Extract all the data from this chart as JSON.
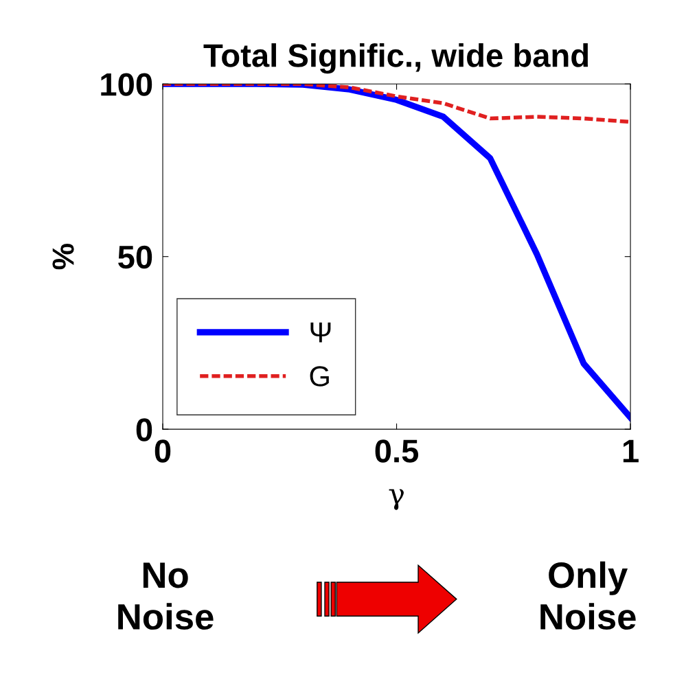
{
  "chart_data": {
    "type": "line",
    "title": "Total Signific., wide band",
    "xlabel": "γ",
    "ylabel": "%",
    "x": [
      0,
      0.1,
      0.2,
      0.3,
      0.4,
      0.5,
      0.6,
      0.7,
      0.8,
      0.9,
      1.0
    ],
    "series": [
      {
        "name": "Ψ",
        "color": "#0000ff",
        "line_style": "solid",
        "values": [
          100,
          100,
          100,
          99.8,
          98.4,
          95.4,
          90.5,
          78.5,
          50.7,
          19,
          3.4
        ]
      },
      {
        "name": "G",
        "color": "#e02020",
        "line_style": "dashed",
        "values": [
          100,
          100,
          100,
          100,
          99,
          96.4,
          94.4,
          90,
          90.5,
          90,
          89
        ]
      }
    ],
    "xlim": [
      0,
      1
    ],
    "ylim": [
      0,
      100
    ],
    "xticks": [
      0,
      0.5,
      1
    ],
    "yticks": [
      0,
      50,
      100
    ],
    "grid": false,
    "legend": "bottom left",
    "marker": "none",
    "annotations": [
      "No\nNoise",
      "Only\nNoise"
    ]
  }
}
